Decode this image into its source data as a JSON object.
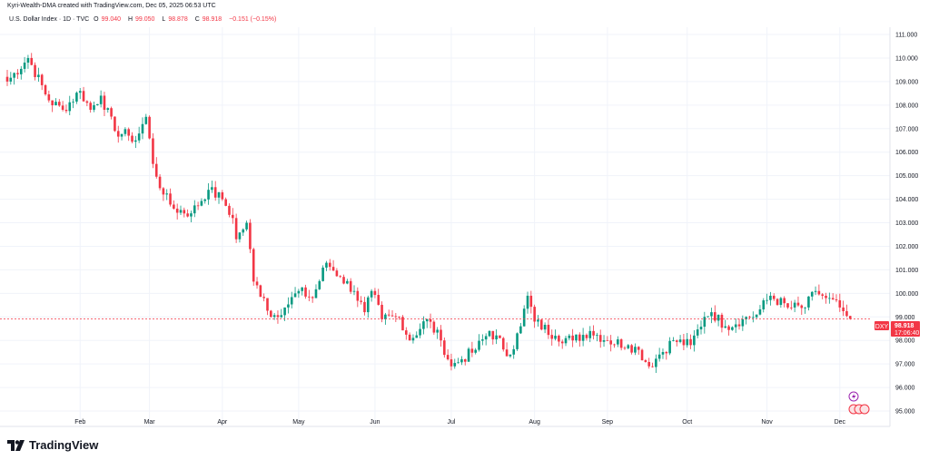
{
  "header": {
    "credit": "Kyri-Wealth-DMA created with TradingView.com, Dec 05, 2025 06:53 UTC",
    "symbol_desc": "U.S. Dollar Index · 1D · TVC",
    "o_label": "O",
    "o": "99.040",
    "h_label": "H",
    "h": "99.050",
    "l_label": "L",
    "l": "98.878",
    "c_label": "C",
    "c": "98.918",
    "change": "−0.151 (−0.15%)"
  },
  "badge": {
    "symbol": "DXY",
    "price": "98.918",
    "countdown": "17:06:40"
  },
  "logo": {
    "text": "TradingView"
  },
  "colors": {
    "up": "#089981",
    "down": "#f23645",
    "grid": "#f0f3fa",
    "text": "#131722"
  },
  "chart_data": {
    "type": "candlestick",
    "title": "U.S. Dollar Index · 1D · TVC",
    "y_ticks": [
      "111.000",
      "110.000",
      "109.000",
      "108.000",
      "107.000",
      "106.000",
      "105.000",
      "104.000",
      "103.000",
      "102.000",
      "101.000",
      "100.000",
      "99.000",
      "98.000",
      "97.000",
      "96.000",
      "95.000"
    ],
    "ylim": [
      94.4,
      111.5
    ],
    "x_ticks": [
      {
        "label": "Feb",
        "day": 21
      },
      {
        "label": "Mar",
        "day": 41
      },
      {
        "label": "Apr",
        "day": 62
      },
      {
        "label": "May",
        "day": 84
      },
      {
        "label": "Jun",
        "day": 106
      },
      {
        "label": "Jul",
        "day": 128
      },
      {
        "label": "Aug",
        "day": 152
      },
      {
        "label": "Sep",
        "day": 173
      },
      {
        "label": "Oct",
        "day": 196
      },
      {
        "label": "Nov",
        "day": 219
      },
      {
        "label": "Dec",
        "day": 240
      }
    ],
    "close_path_day_price": [
      [
        0,
        109.0
      ],
      [
        6,
        110.0
      ],
      [
        12,
        108.2
      ],
      [
        16,
        107.8
      ],
      [
        21,
        108.6
      ],
      [
        24,
        107.8
      ],
      [
        27,
        108.4
      ],
      [
        31,
        106.9
      ],
      [
        35,
        106.7
      ],
      [
        37,
        106.5
      ],
      [
        40,
        107.5
      ],
      [
        42,
        105.5
      ],
      [
        45,
        104.2
      ],
      [
        48,
        103.6
      ],
      [
        53,
        103.4
      ],
      [
        58,
        104.4
      ],
      [
        62,
        104.0
      ],
      [
        65,
        103.2
      ],
      [
        66,
        102.3
      ],
      [
        69,
        103.0
      ],
      [
        71,
        100.5
      ],
      [
        74,
        99.8
      ],
      [
        76,
        99.0
      ],
      [
        80,
        99.4
      ],
      [
        84,
        100.1
      ],
      [
        88,
        99.8
      ],
      [
        92,
        101.3
      ],
      [
        96,
        100.7
      ],
      [
        100,
        100.1
      ],
      [
        103,
        99.2
      ],
      [
        105,
        100.1
      ],
      [
        108,
        98.9
      ],
      [
        113,
        99.0
      ],
      [
        116,
        98.0
      ],
      [
        121,
        98.9
      ],
      [
        125,
        98.0
      ],
      [
        128,
        96.9
      ],
      [
        131,
        97.2
      ],
      [
        135,
        97.6
      ],
      [
        139,
        98.4
      ],
      [
        145,
        97.4
      ],
      [
        148,
        98.6
      ],
      [
        150,
        99.9
      ],
      [
        152,
        98.8
      ],
      [
        158,
        98.2
      ],
      [
        163,
        98.0
      ],
      [
        168,
        98.4
      ],
      [
        173,
        98.0
      ],
      [
        179,
        97.8
      ],
      [
        182,
        97.6
      ],
      [
        185,
        96.9
      ],
      [
        188,
        97.4
      ],
      [
        192,
        98.0
      ],
      [
        197,
        97.8
      ],
      [
        201,
        99.0
      ],
      [
        203,
        99.2
      ],
      [
        207,
        98.6
      ],
      [
        212,
        98.9
      ],
      [
        216,
        99.1
      ],
      [
        220,
        99.9
      ],
      [
        225,
        99.4
      ],
      [
        230,
        99.4
      ],
      [
        233,
        100.1
      ],
      [
        236,
        99.8
      ],
      [
        240,
        99.4
      ],
      [
        242,
        99.04
      ]
    ],
    "last_candle": {
      "open": 99.04,
      "high": 99.05,
      "low": 98.878,
      "close": 98.918
    },
    "last_price": 98.918
  }
}
